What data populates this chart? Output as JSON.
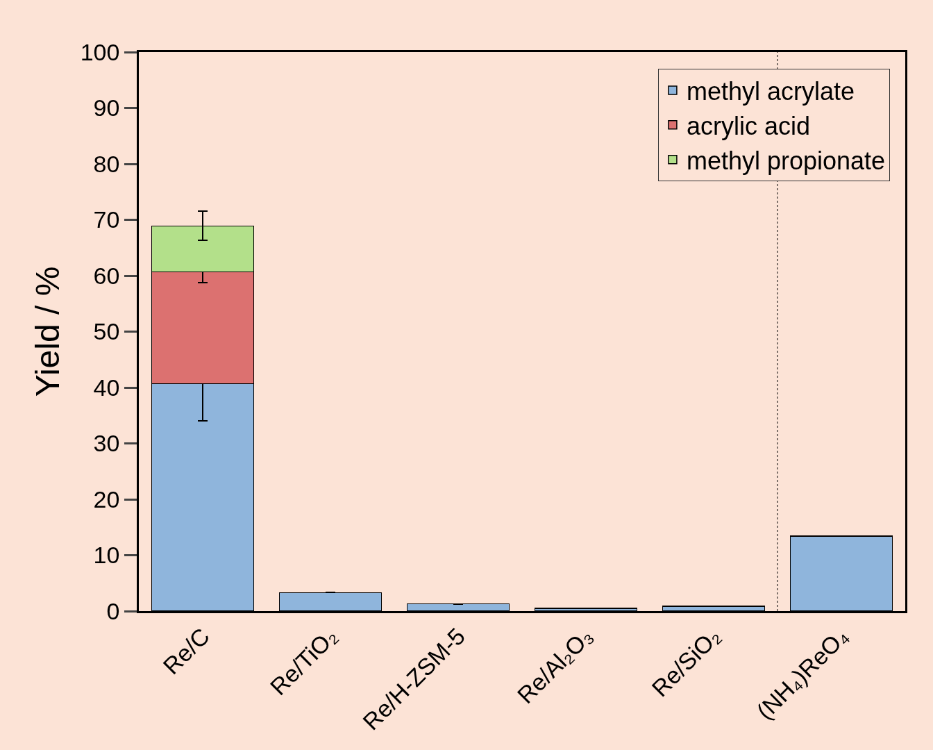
{
  "chart_data": {
    "type": "bar",
    "stacked": true,
    "ylabel": "Yield / %",
    "categories": [
      "Re/C",
      "Re/TiO₂",
      "Re/H-ZSM-5",
      "Re/Al₂O₃",
      "Re/SiO₂",
      "(NH₄)ReO₄"
    ],
    "series": [
      {
        "name": "methyl acrylate",
        "color": "#8fb5dc",
        "values": [
          40.7,
          3.3,
          1.3,
          0.5,
          0.9,
          13.4
        ],
        "errors": [
          6.7,
          null,
          null,
          null,
          null,
          null
        ]
      },
      {
        "name": "acrylic acid",
        "color": "#dc7170",
        "values": [
          20.0,
          null,
          null,
          null,
          null,
          null
        ],
        "errors": [
          2.0,
          null,
          null,
          null,
          null,
          null
        ]
      },
      {
        "name": "methyl propionate",
        "color": "#b3e08a",
        "values": [
          8.2,
          null,
          null,
          null,
          null,
          null
        ],
        "errors": [
          2.6,
          null,
          null,
          null,
          null,
          null
        ]
      }
    ],
    "ylim": [
      0,
      100
    ],
    "yticks": [
      0,
      10,
      20,
      30,
      40,
      50,
      60,
      70,
      80,
      90,
      100
    ],
    "grid": false,
    "legend": "top right"
  }
}
